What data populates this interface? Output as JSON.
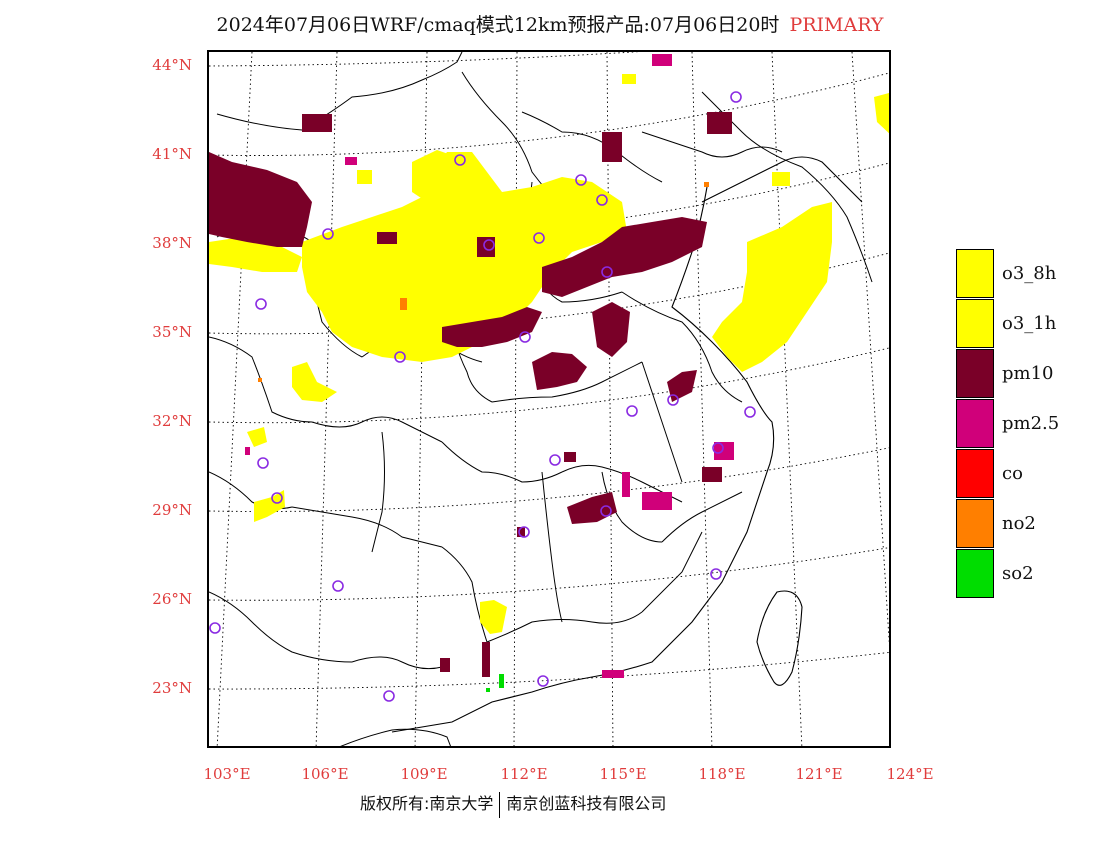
{
  "title": {
    "main": "2024年07月06日WRF/cmaq模式12km预报产品:07月06日20时",
    "tag": "PRIMARY"
  },
  "axes": {
    "lat_labels": [
      "44°N",
      "41°N",
      "38°N",
      "35°N",
      "32°N",
      "29°N",
      "26°N",
      "23°N"
    ],
    "lon_labels": [
      "103°E",
      "106°E",
      "109°E",
      "112°E",
      "115°E",
      "118°E",
      "121°E",
      "124°E"
    ]
  },
  "legend": [
    {
      "label": "o3_8h",
      "color": "#ffff00"
    },
    {
      "label": "o3_1h",
      "color": "#ffff00"
    },
    {
      "label": "pm10",
      "color": "#7a0028"
    },
    {
      "label": "pm2.5",
      "color": "#d0007a"
    },
    {
      "label": "co",
      "color": "#ff0000"
    },
    {
      "label": "no2",
      "color": "#ff7f00"
    },
    {
      "label": "so2",
      "color": "#00dd00"
    }
  ],
  "footer": {
    "left": "版权所有:南京大学",
    "right": "南京创蓝科技有限公司"
  },
  "colors": {
    "axis_label": "#e03c3c",
    "station_marker": "#8a2be2"
  }
}
